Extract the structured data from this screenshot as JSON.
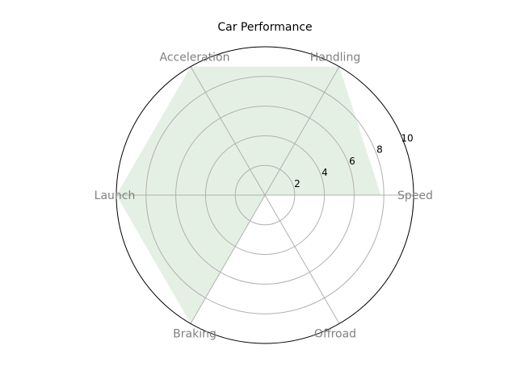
{
  "chart_data": {
    "type": "radar",
    "title": "Car Performance",
    "categories": [
      "Speed",
      "Handling",
      "Acceleration",
      "Launch",
      "Braking",
      "Offroad"
    ],
    "series": [
      {
        "values": [
          7.8,
          10,
          10,
          10,
          10,
          0
        ]
      }
    ],
    "r_ticks": [
      2,
      4,
      6,
      8,
      10
    ],
    "rlim": [
      0,
      10
    ],
    "grid": true,
    "fill_color": "#e5f0e5",
    "grid_color": "#b0b0b0",
    "label_color": "#808080"
  }
}
